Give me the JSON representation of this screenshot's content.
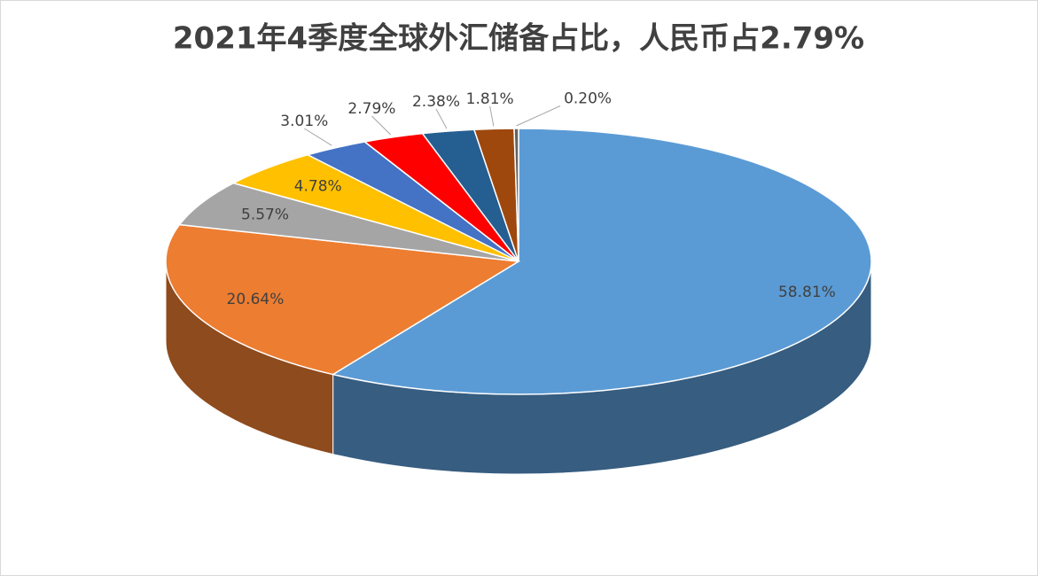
{
  "chart_data": {
    "type": "pie",
    "title": "2021年4季度全球外汇储备占比，人民币占2.79%",
    "values": [
      58.81,
      20.64,
      5.57,
      4.78,
      3.01,
      2.79,
      2.38,
      1.81,
      0.2
    ],
    "value_labels": [
      "58.81%",
      "20.64%",
      "5.57%",
      "4.78%",
      "3.01%",
      "2.79%",
      "2.38%",
      "1.81%",
      "0.20%"
    ],
    "colors": [
      "#5b9bd5",
      "#ed7d31",
      "#a5a5a5",
      "#ffc000",
      "#4472c4",
      "#ff0000",
      "#255e91",
      "#9e480e",
      "#636363"
    ]
  }
}
